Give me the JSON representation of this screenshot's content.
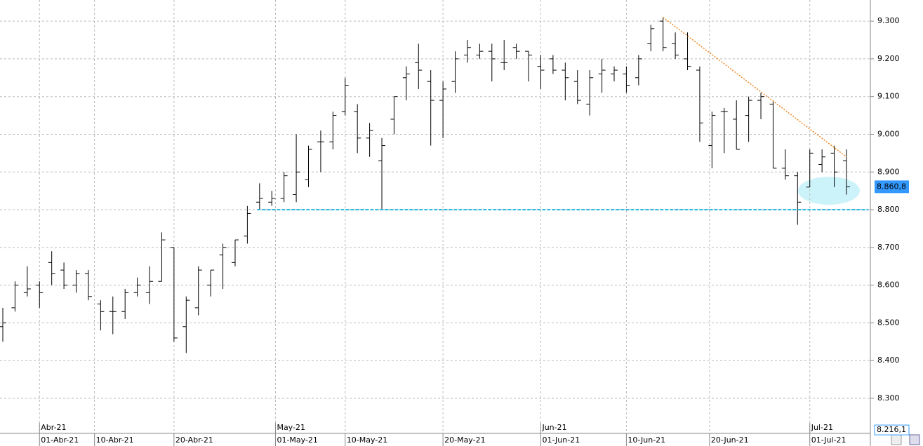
{
  "chart_data": {
    "type": "ohlc",
    "color": "#000000",
    "open": [
      8490,
      8540,
      8580,
      8600,
      8660,
      8640,
      8600,
      8630,
      8550,
      8530,
      8530,
      8580,
      8580,
      8610,
      8700,
      8490,
      8540,
      8600,
      8680,
      8660,
      8730,
      8820,
      8820,
      8830,
      8840,
      8880,
      8980,
      8980,
      9060,
      9060,
      8990,
      8930,
      9040,
      9150,
      9190,
      9140,
      9090,
      9140,
      9210,
      9210,
      9220,
      9190,
      9230,
      9220,
      9180,
      9200,
      9170,
      9140,
      9080,
      9160,
      9160,
      9160,
      9150,
      9240,
      9300,
      9240,
      9200,
      9170,
      8970,
      9060,
      9040,
      9050,
      9090,
      9080,
      8910,
      8890,
      8860,
      8920,
      8950,
      8930
    ],
    "high": [
      8540,
      8610,
      8650,
      8610,
      8690,
      8660,
      8640,
      8640,
      8560,
      8570,
      8590,
      8620,
      8650,
      8740,
      8700,
      8570,
      8650,
      8640,
      8710,
      8720,
      8810,
      8870,
      8850,
      8900,
      9000,
      8970,
      9010,
      9060,
      9150,
      9080,
      9030,
      8990,
      9100,
      9180,
      9240,
      9170,
      9140,
      9220,
      9250,
      9240,
      9240,
      9250,
      9240,
      9220,
      9210,
      9210,
      9190,
      9170,
      9170,
      9200,
      9180,
      9180,
      9210,
      9290,
      9310,
      9270,
      9270,
      9180,
      9060,
      9070,
      9090,
      9100,
      9110,
      9090,
      8960,
      8900,
      8960,
      8960,
      8970,
      8960
    ],
    "low": [
      8450,
      8530,
      8570,
      8540,
      8600,
      8590,
      8580,
      8560,
      8480,
      8470,
      8510,
      8570,
      8550,
      8610,
      8450,
      8420,
      8520,
      8570,
      8590,
      8650,
      8710,
      8800,
      8810,
      8820,
      8820,
      8860,
      8900,
      8960,
      9050,
      8950,
      8940,
      8800,
      9000,
      9090,
      9120,
      8970,
      8990,
      9110,
      9190,
      9200,
      9140,
      9170,
      9200,
      9140,
      9120,
      9160,
      9090,
      9080,
      9050,
      9110,
      9140,
      9110,
      9130,
      9220,
      9220,
      9200,
      9170,
      8980,
      8910,
      8950,
      8960,
      8980,
      9040,
      8910,
      8880,
      8760,
      8860,
      8900,
      8860,
      8840
    ],
    "close": [
      8500,
      8600,
      8590,
      8580,
      8630,
      8600,
      8630,
      8570,
      8530,
      8530,
      8580,
      8600,
      8610,
      8720,
      8460,
      8560,
      8640,
      8640,
      8700,
      8720,
      8790,
      8830,
      8830,
      8890,
      8900,
      8960,
      8980,
      9050,
      9130,
      8990,
      9010,
      8970,
      9100,
      9160,
      9170,
      9090,
      9120,
      9200,
      9230,
      9220,
      9200,
      9190,
      9220,
      9210,
      9170,
      9170,
      9150,
      9090,
      9150,
      9170,
      9170,
      9130,
      9200,
      9280,
      9230,
      9210,
      9180,
      9030,
      9050,
      9060,
      8960,
      9090,
      9100,
      8910,
      8890,
      8820,
      8950,
      8940,
      8900,
      8860.8
    ],
    "ylim": [
      8207,
      9356
    ],
    "yticks": [
      {
        "value": 8300,
        "label": "8.300"
      },
      {
        "value": 8400,
        "label": "8.400"
      },
      {
        "value": 8500,
        "label": "8.500"
      },
      {
        "value": 8600,
        "label": "8.600"
      },
      {
        "value": 8700,
        "label": "8.700"
      },
      {
        "value": 8800,
        "label": "8.800"
      },
      {
        "value": 8900,
        "label": "8.900"
      },
      {
        "value": 9000,
        "label": "9.000"
      },
      {
        "value": 9100,
        "label": "9.100"
      },
      {
        "value": 9200,
        "label": "9.200"
      },
      {
        "value": 9300,
        "label": "9.300"
      }
    ],
    "xticks": [
      {
        "value": 3,
        "label": "01-Abr-21"
      },
      {
        "value": 7.5,
        "label": "10-Abr-21"
      },
      {
        "value": 14,
        "label": "20-Abr-21"
      },
      {
        "value": 22.3,
        "label": "01-May-21"
      },
      {
        "value": 28,
        "label": "10-May-21"
      },
      {
        "value": 36,
        "label": "20-May-21"
      },
      {
        "value": 44,
        "label": "01-Jun-21"
      },
      {
        "value": 51,
        "label": "10-Jun-21"
      },
      {
        "value": 57.8,
        "label": "20-Jun-21"
      },
      {
        "value": 66,
        "label": "01-Jul-21"
      }
    ],
    "month_ticks": [
      {
        "value": 3,
        "label": "Abr-21"
      },
      {
        "value": 22.3,
        "label": "May-21"
      },
      {
        "value": 44,
        "label": "Jun-21"
      },
      {
        "value": 66,
        "label": "Jul-21"
      }
    ],
    "grid": true,
    "last_price": {
      "value": 8860.8,
      "label": "8.860,8",
      "color": "#3399ff"
    },
    "lower_badge": {
      "value": 8216.1,
      "label": "8.216,1"
    },
    "support_line": {
      "value": 8800,
      "from": 20.8,
      "to": 70.8,
      "color": "#33bbdd"
    },
    "trend_line": {
      "from": [
        54,
        9310
      ],
      "to": [
        69,
        8940
      ],
      "color": "#ee8822"
    }
  }
}
